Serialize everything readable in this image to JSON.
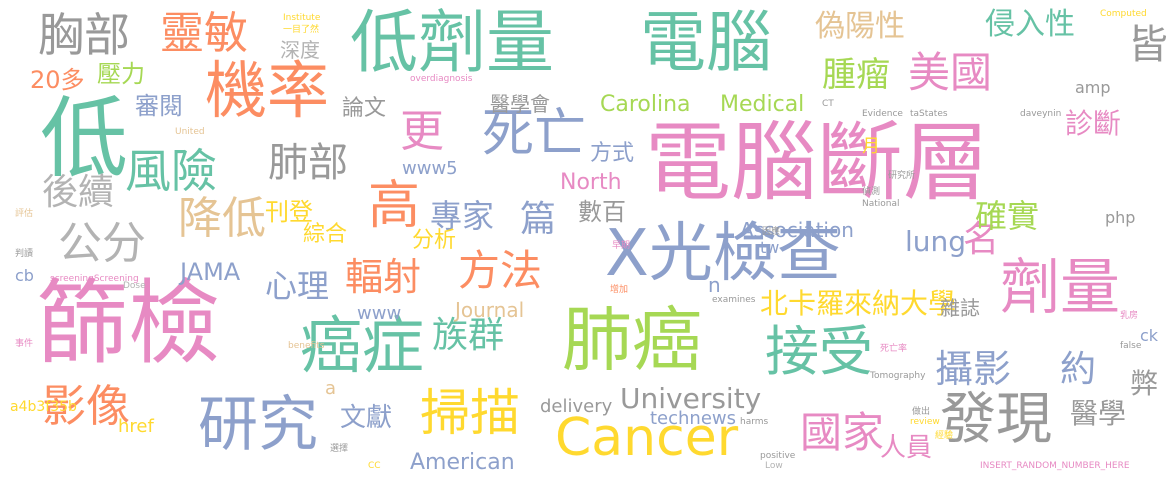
{
  "words": [
    "電腦斷層",
    "篩檢",
    "電腦",
    "X光檢查",
    "低劑量",
    "肺癌",
    "機率",
    "低",
    "癌症",
    "劑量",
    "研究",
    "接受",
    "Cancer",
    "發現",
    "掃描",
    "風險",
    "肺部",
    "降低",
    "高",
    "死亡",
    "方法",
    "胸部",
    "靈敏",
    "美國",
    "國家",
    "輻射",
    "影像",
    "族群",
    "公分",
    "後續",
    "名",
    "專家",
    "腫瘤",
    "偽陽性",
    "侵入性",
    "確實",
    "約",
    "攝影",
    "篇",
    "心理",
    "醫學",
    "診斷",
    "更",
    "北卡羅來納大學",
    "University",
    "American",
    "Carolina",
    "Medical",
    "North",
    "Journal",
    "JAMA",
    "Association",
    "lung",
    "數百",
    "壓力",
    "20多",
    "審閱",
    "論文",
    "文獻",
    "刊登",
    "綜合",
    "分析",
    "深度",
    "醫學會",
    "方式",
    "雜誌",
    "人員",
    "www5",
    "www",
    "technews",
    "delivery",
    "a4b3f35b",
    "href",
    "弊",
    "皆",
    "php",
    "ck",
    "amp",
    "tw",
    "cb",
    "n",
    "月",
    "a",
    "Institute",
    "Computed",
    "Tomography",
    "Evidence",
    "National",
    "positive",
    "false",
    "harms",
    "benefits",
    "examines",
    "review",
    "overdiagnosis",
    "screeningScreening",
    "Dose",
    "Low",
    "CT",
    "daveynin",
    "taStates",
    "United",
    "CC",
    "INSERT_RANDOM_NUMBER_HERE",
    "研究所",
    "死亡率",
    "偵測",
    "經驗",
    "選擇",
    "評估",
    "判讀",
    "事件",
    "乳房",
    "做出",
    "增加",
    "早期",
    "因應",
    "一目了然"
  ]
}
